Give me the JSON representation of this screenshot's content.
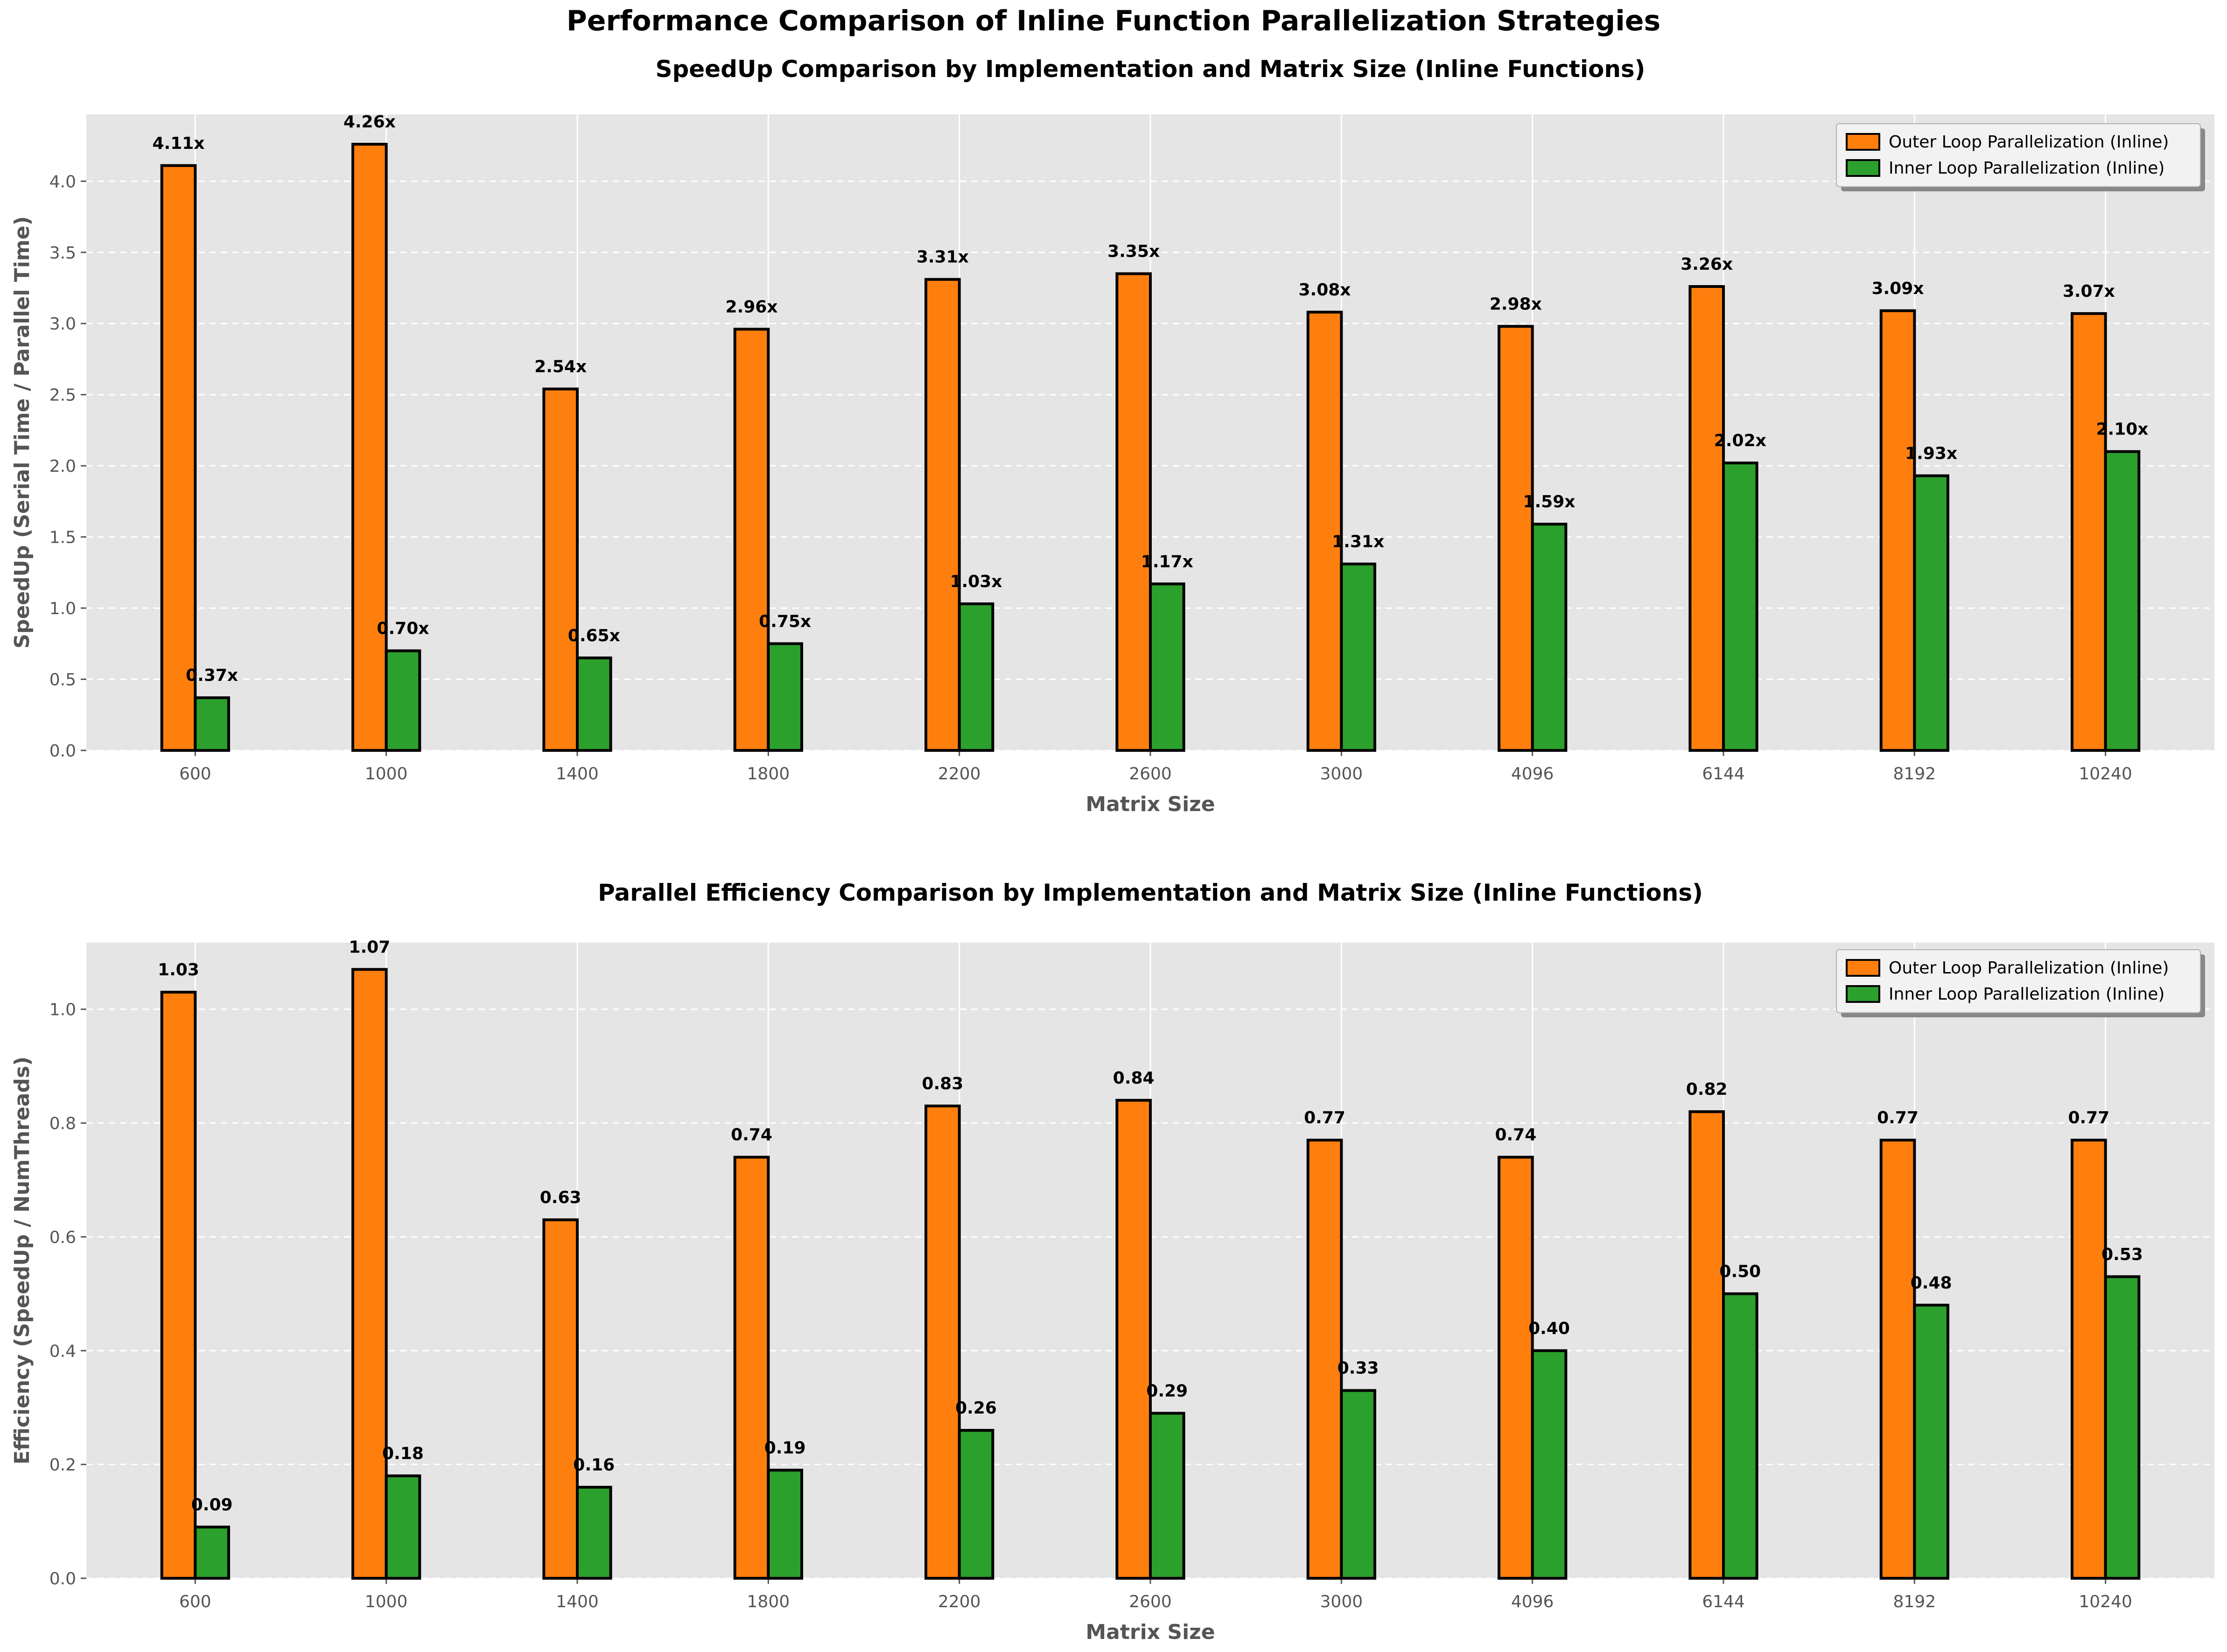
{
  "figure_title": "Performance Comparison of Inline Function Parallelization Strategies",
  "colors": {
    "outer": "#ff7f0e",
    "inner": "#2ca02c",
    "panel_bg": "#e5e5e5",
    "edge": "#000000",
    "tick_text": "#555555"
  },
  "chart_data": [
    {
      "type": "bar",
      "title": "SpeedUp Comparison by Implementation and Matrix Size (Inline Functions)",
      "xlabel": "Matrix Size",
      "ylabel": "SpeedUp (Serial Time / Parallel Time)",
      "categories": [
        "600",
        "1000",
        "1400",
        "1800",
        "2200",
        "2600",
        "3000",
        "4096",
        "6144",
        "8192",
        "10240"
      ],
      "ylim": [
        0,
        4.47
      ],
      "yticks": [
        "0.0",
        "0.5",
        "1.0",
        "1.5",
        "2.0",
        "2.5",
        "3.0",
        "3.5",
        "4.0"
      ],
      "grid": true,
      "legend_position": "top-right",
      "series": [
        {
          "name": "Outer Loop Parallelization (Inline)",
          "values": [
            4.11,
            4.26,
            2.54,
            2.96,
            3.31,
            3.35,
            3.08,
            2.98,
            3.26,
            3.09,
            3.07
          ],
          "labels": [
            "4.11x",
            "4.26x",
            "2.54x",
            "2.96x",
            "3.31x",
            "3.35x",
            "3.08x",
            "2.98x",
            "3.26x",
            "3.09x",
            "3.07x"
          ]
        },
        {
          "name": "Inner Loop Parallelization (Inline)",
          "values": [
            0.37,
            0.7,
            0.65,
            0.75,
            1.03,
            1.17,
            1.31,
            1.59,
            2.02,
            1.93,
            2.1
          ],
          "labels": [
            "0.37x",
            "0.70x",
            "0.65x",
            "0.75x",
            "1.03x",
            "1.17x",
            "1.31x",
            "1.59x",
            "2.02x",
            "1.93x",
            "2.10x"
          ]
        }
      ]
    },
    {
      "type": "bar",
      "title": "Parallel Efficiency Comparison by Implementation and Matrix Size (Inline Functions)",
      "xlabel": "Matrix Size",
      "ylabel": "Efficiency (SpeedUp / NumThreads)",
      "categories": [
        "600",
        "1000",
        "1400",
        "1800",
        "2200",
        "2600",
        "3000",
        "4096",
        "6144",
        "8192",
        "10240"
      ],
      "ylim": [
        0,
        1.117
      ],
      "yticks": [
        "0.0",
        "0.2",
        "0.4",
        "0.6",
        "0.8",
        "1.0"
      ],
      "grid": true,
      "legend_position": "top-right",
      "series": [
        {
          "name": "Outer Loop Parallelization (Inline)",
          "values": [
            1.03,
            1.07,
            0.63,
            0.74,
            0.83,
            0.84,
            0.77,
            0.74,
            0.82,
            0.77,
            0.77
          ],
          "labels": [
            "1.03",
            "1.07",
            "0.63",
            "0.74",
            "0.83",
            "0.84",
            "0.77",
            "0.74",
            "0.82",
            "0.77",
            "0.77"
          ]
        },
        {
          "name": "Inner Loop Parallelization (Inline)",
          "values": [
            0.09,
            0.18,
            0.16,
            0.19,
            0.26,
            0.29,
            0.33,
            0.4,
            0.5,
            0.48,
            0.53
          ],
          "labels": [
            "0.09",
            "0.18",
            "0.16",
            "0.19",
            "0.26",
            "0.29",
            "0.33",
            "0.40",
            "0.50",
            "0.48",
            "0.53"
          ]
        }
      ]
    }
  ]
}
